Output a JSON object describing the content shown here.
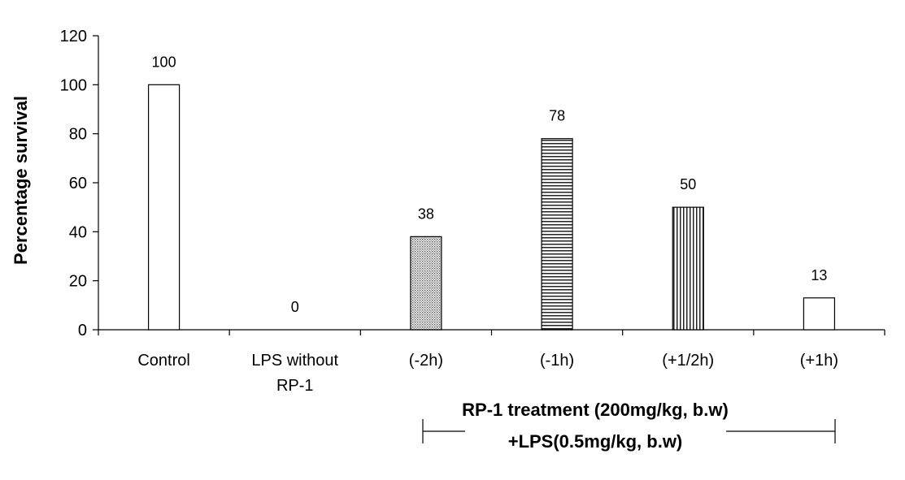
{
  "chart_data": {
    "type": "bar",
    "title": "",
    "xlabel": "",
    "ylabel": "Percentage survival",
    "ylim": [
      0,
      120
    ],
    "yticks": [
      0,
      20,
      40,
      60,
      80,
      100,
      120
    ],
    "grid": false,
    "legend": "none",
    "categories": [
      [
        "Control"
      ],
      [
        "LPS without",
        "RP-1"
      ],
      [
        "(-2h)"
      ],
      [
        "(-1h)"
      ],
      [
        "(+1/2h)"
      ],
      [
        "(+1h)"
      ]
    ],
    "values": [
      100,
      0,
      38,
      78,
      50,
      13
    ],
    "data_labels": [
      "100",
      "0",
      "38",
      "78",
      "50",
      "13"
    ],
    "bar_fills": [
      "white",
      "white",
      "dots",
      "horizontal-lines",
      "vertical-lines",
      "white"
    ],
    "annotation": {
      "line1": "RP-1 treatment (200mg/kg, b.w)",
      "line2": "+LPS(0.5mg/kg, b.w)"
    }
  }
}
